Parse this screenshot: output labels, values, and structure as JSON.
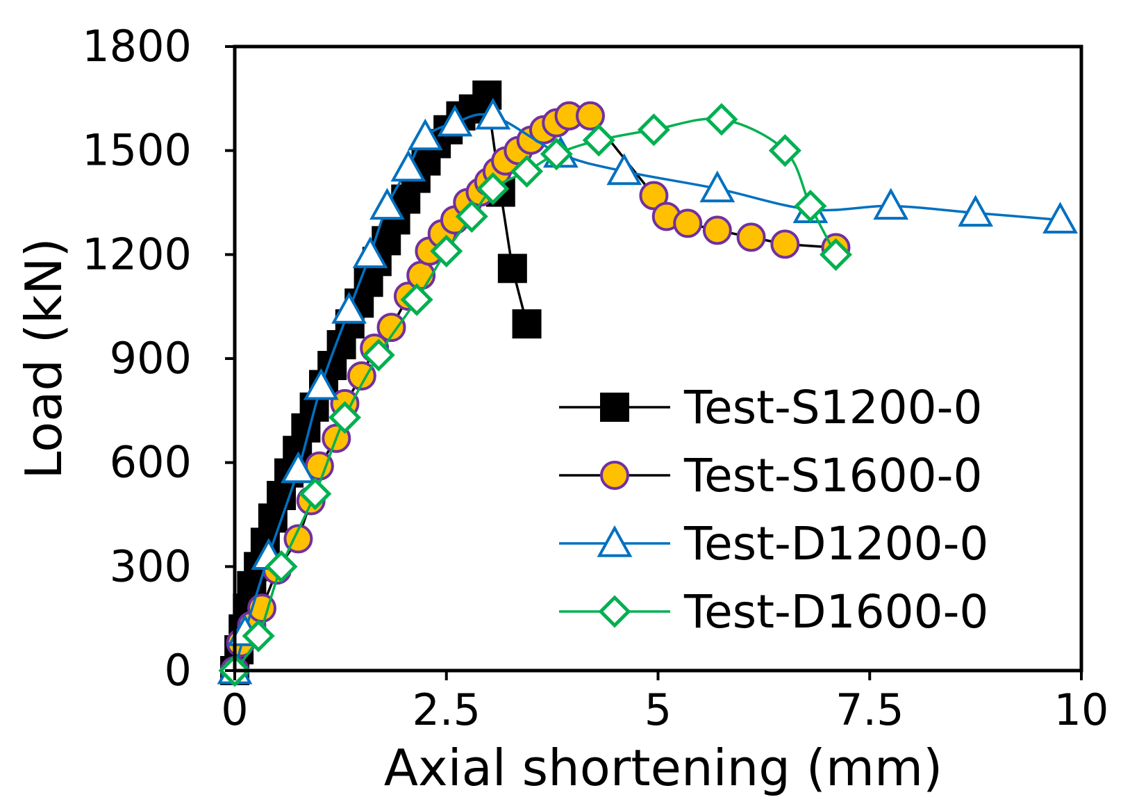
{
  "chart_data": {
    "type": "line",
    "title": "",
    "xlabel": "Axial shortening (mm)",
    "ylabel": "Load (kN)",
    "xlim": [
      0,
      10
    ],
    "ylim": [
      0,
      1800
    ],
    "xticks": [
      0,
      2.5,
      5,
      7.5,
      10
    ],
    "xtick_labels": [
      "0",
      "2.5",
      "5",
      "7.5",
      "10"
    ],
    "yticks": [
      0,
      300,
      600,
      900,
      1200,
      1500,
      1800
    ],
    "ytick_labels": [
      "0",
      "300",
      "600",
      "900",
      "1200",
      "1500",
      "1800"
    ],
    "grid": false,
    "legend_position": "bottom-right",
    "series": [
      {
        "name": "Test-S1200-0",
        "color": "#000000",
        "marker": "filled-square",
        "line_color": "#000000",
        "smooth": false,
        "x": [
          0,
          0.05,
          0.1,
          0.15,
          0.2,
          0.28,
          0.36,
          0.45,
          0.55,
          0.64,
          0.74,
          0.84,
          0.94,
          1.05,
          1.15,
          1.26,
          1.36,
          1.47,
          1.58,
          1.68,
          1.79,
          1.9,
          2.02,
          2.14,
          2.26,
          2.38,
          2.52,
          2.67,
          2.82,
          2.98,
          3.14,
          3.28,
          3.45
        ],
        "y": [
          0,
          60,
          120,
          180,
          245,
          300,
          370,
          440,
          505,
          570,
          635,
          700,
          760,
          825,
          880,
          940,
          1000,
          1060,
          1120,
          1180,
          1240,
          1300,
          1360,
          1420,
          1470,
          1520,
          1560,
          1600,
          1620,
          1660,
          1380,
          1160,
          1000
        ]
      },
      {
        "name": "Test-S1600-0",
        "color": "#FFC000",
        "marker": "filled-circle",
        "marker_edge": "#7030A0",
        "line_color": "#000000",
        "smooth": false,
        "x": [
          0,
          0.07,
          0.2,
          0.32,
          0.5,
          0.75,
          0.9,
          1.0,
          1.2,
          1.3,
          1.5,
          1.65,
          1.85,
          2.05,
          2.2,
          2.3,
          2.45,
          2.6,
          2.75,
          2.9,
          3.0,
          3.1,
          3.2,
          3.35,
          3.5,
          3.65,
          3.8,
          3.95,
          4.2,
          4.95,
          5.1,
          5.35,
          5.7,
          6.1,
          6.5,
          7.1
        ],
        "y": [
          0,
          80,
          130,
          180,
          290,
          380,
          490,
          590,
          670,
          770,
          850,
          930,
          990,
          1080,
          1140,
          1210,
          1260,
          1300,
          1350,
          1380,
          1410,
          1440,
          1470,
          1500,
          1530,
          1560,
          1580,
          1600,
          1600,
          1370,
          1310,
          1290,
          1270,
          1250,
          1230,
          1220
        ]
      },
      {
        "name": "Test-D1200-0",
        "color": "#0070C0",
        "marker": "open-triangle",
        "line_color": "#0070C0",
        "smooth": true,
        "x": [
          0,
          0.12,
          0.4,
          0.75,
          1.02,
          1.35,
          1.6,
          1.8,
          2.05,
          2.25,
          2.6,
          3.05,
          3.85,
          4.6,
          5.7,
          6.8,
          7.75,
          8.75,
          9.75
        ],
        "y": [
          0,
          110,
          330,
          580,
          820,
          1040,
          1200,
          1340,
          1450,
          1540,
          1580,
          1600,
          1490,
          1440,
          1390,
          1330,
          1340,
          1320,
          1300
        ]
      },
      {
        "name": "Test-D1600-0",
        "color": "#00B050",
        "marker": "open-diamond",
        "line_color": "#00B050",
        "smooth": true,
        "x": [
          0,
          0.28,
          0.55,
          0.95,
          1.3,
          1.7,
          2.15,
          2.5,
          2.8,
          3.05,
          3.45,
          3.8,
          4.3,
          4.95,
          5.75,
          6.5,
          6.8,
          7.1
        ],
        "y": [
          0,
          100,
          300,
          510,
          730,
          910,
          1070,
          1210,
          1310,
          1390,
          1440,
          1490,
          1530,
          1560,
          1590,
          1500,
          1340,
          1200
        ]
      }
    ]
  }
}
